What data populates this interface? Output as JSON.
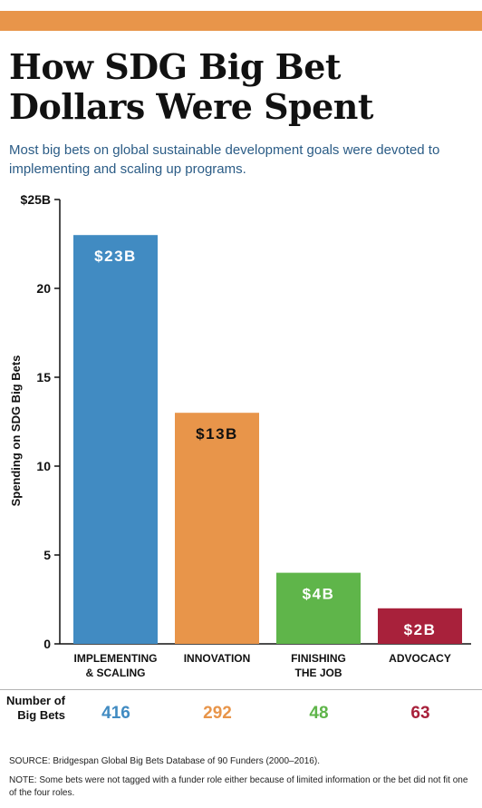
{
  "header": {
    "title": "How SDG Big Bet Dollars Were Spent",
    "subtitle": "Most big bets on global sustainable development goals were devoted to implementing and scaling up programs."
  },
  "chart_data": {
    "type": "bar",
    "categories": [
      "IMPLEMENTING & SCALING",
      "INNOVATION",
      "FINISHING THE JOB",
      "ADVOCACY"
    ],
    "values": [
      23,
      13,
      4,
      2
    ],
    "data_labels": [
      "$23B",
      "$13B",
      "$4B",
      "$2B"
    ],
    "colors": [
      "#418bc2",
      "#e8954a",
      "#5fb54a",
      "#a8213b"
    ],
    "ylabel": "Spending on SDG Big Bets",
    "ylim": [
      0,
      25
    ],
    "yticks": [
      {
        "value": 0,
        "label": "0"
      },
      {
        "value": 5,
        "label": "5"
      },
      {
        "value": 10,
        "label": "10"
      },
      {
        "value": 15,
        "label": "15"
      },
      {
        "value": 20,
        "label": "20"
      },
      {
        "value": 25,
        "label": "$25B"
      }
    ],
    "grid": false
  },
  "big_bets": {
    "label": "Number of Big Bets",
    "counts": [
      "416",
      "292",
      "48",
      "63"
    ]
  },
  "footer": {
    "source": "SOURCE: Bridgespan Global Big Bets Database of 90 Funders (2000–2016).",
    "note": "NOTE: Some bets were not tagged with a funder role either because of limited information or the bet did not fit one of the four roles."
  }
}
